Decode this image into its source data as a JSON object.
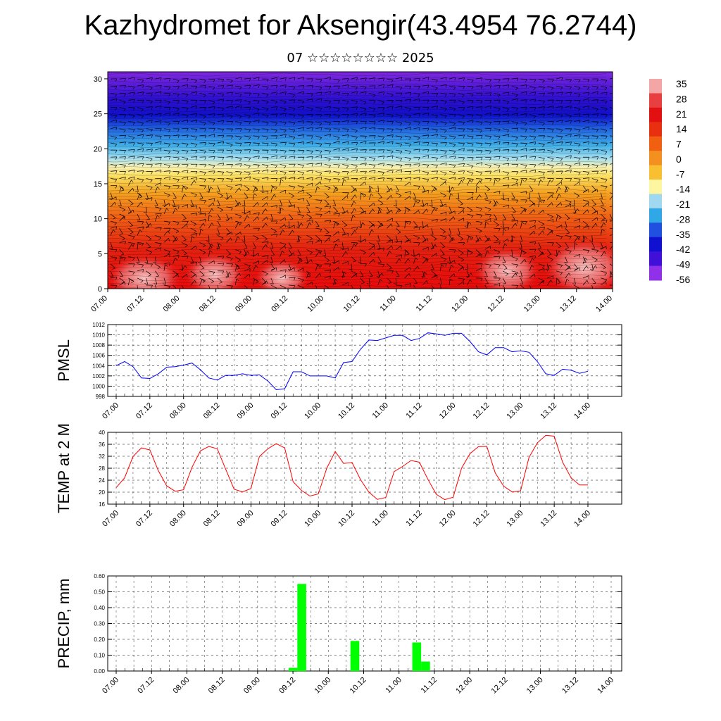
{
  "title": "Kazhydromet for Aksengir(43.4954 76.2744)",
  "subtitle": "07 ☆☆☆☆☆☆☆☆ 2025",
  "colors": {
    "pmsl": "#0000ff",
    "temp": "#ff0000",
    "precip": "#00ff00"
  },
  "chart_data": [
    {
      "type": "heatmap",
      "title": "",
      "xlabel": "",
      "ylabel": "",
      "x_ticks": [
        "07.00",
        "07.12",
        "08.00",
        "08.12",
        "09.00",
        "09.12",
        "10.00",
        "10.12",
        "11.00",
        "11.12",
        "12.00",
        "12.12",
        "13.00",
        "13.12",
        "14.00"
      ],
      "y_ticks": [
        0,
        5,
        10,
        15,
        20,
        25,
        30
      ],
      "ylim": [
        0,
        31
      ],
      "colorbar_labels": [
        "35",
        "28",
        "21",
        "14",
        "7",
        "0",
        "-7",
        "-14",
        "-21",
        "-28",
        "-35",
        "-42",
        "-49",
        "-56"
      ],
      "colorbar_colors": [
        "#f4a6a6",
        "#e84040",
        "#e21010",
        "#e83010",
        "#f06010",
        "#f49020",
        "#f8c030",
        "#fdf5a0",
        "#a0d8f0",
        "#30a8e8",
        "#2050e0",
        "#1010d0",
        "#4010d8",
        "#9030e8"
      ],
      "note_values": "wind barbs overlaid"
    },
    {
      "type": "line",
      "ylabel": "PMSL",
      "x_ticks": [
        "07.00",
        "07.12",
        "08.00",
        "08.12",
        "09.00",
        "09.12",
        "10.00",
        "10.12",
        "11.00",
        "11.12",
        "12.00",
        "12.12",
        "13.00",
        "13.12",
        "14.00"
      ],
      "ylim": [
        998,
        1012
      ],
      "y_ticks": [
        998,
        1000,
        1002,
        1004,
        1006,
        1008,
        1010,
        1012
      ],
      "values": [
        1004.0,
        1004.8,
        1003.8,
        1001.6,
        1001.5,
        1002.4,
        1003.7,
        1003.8,
        1004.1,
        1004.5,
        1003.2,
        1001.6,
        1001.2,
        1002.1,
        1002.1,
        1002.4,
        1002.1,
        1002.2,
        1001.0,
        999.3,
        999.5,
        1002.8,
        1002.8,
        1002.0,
        1002.0,
        1002.0,
        1001.6,
        1004.6,
        1004.8,
        1007.2,
        1009.0,
        1008.9,
        1009.4,
        1009.9,
        1009.9,
        1008.9,
        1009.3,
        1010.4,
        1010.2,
        1009.9,
        1010.3,
        1010.3,
        1008.7,
        1006.7,
        1006.1,
        1007.5,
        1007.5,
        1006.7,
        1006.9,
        1006.6,
        1004.8,
        1002.4,
        1002.1,
        1003.3,
        1003.1,
        1002.5,
        1002.9
      ]
    },
    {
      "type": "line",
      "ylabel": "TEMP at 2 M",
      "x_ticks": [
        "07.00",
        "07.12",
        "08.00",
        "08.12",
        "09.00",
        "09.12",
        "10.00",
        "10.12",
        "11.00",
        "11.12",
        "12.00",
        "12.12",
        "13.00",
        "13.12",
        "14.00"
      ],
      "ylim": [
        16,
        40
      ],
      "y_ticks": [
        16,
        20,
        24,
        28,
        32,
        36,
        40
      ],
      "values": [
        21.5,
        24.8,
        31.9,
        34.8,
        34.1,
        27.2,
        22.1,
        20.3,
        20.8,
        28.3,
        33.8,
        35.3,
        34.5,
        27.7,
        21.0,
        20.1,
        21.2,
        31.9,
        34.5,
        36.2,
        34.8,
        23.5,
        20.6,
        18.7,
        19.4,
        28.0,
        33.6,
        29.6,
        29.9,
        24.2,
        20.0,
        17.6,
        18.2,
        26.9,
        28.6,
        30.6,
        30.0,
        24.3,
        19.3,
        17.5,
        18.3,
        28.0,
        32.9,
        35.2,
        35.3,
        26.4,
        22.0,
        20.1,
        20.4,
        31.6,
        36.5,
        39.0,
        38.7,
        30.0,
        24.8,
        22.4,
        22.4
      ]
    },
    {
      "type": "bar",
      "ylabel": "PRECIP, mm",
      "x_ticks": [
        "07.00",
        "07.12",
        "08.00",
        "08.12",
        "09.00",
        "09.12",
        "10.00",
        "10.12",
        "11.00",
        "11.12",
        "12.00",
        "12.12",
        "13.00",
        "13.12",
        "14.00"
      ],
      "ylim": [
        0,
        0.6
      ],
      "y_ticks": [
        "0.00",
        "0.10",
        "0.20",
        "0.30",
        "0.40",
        "0.50",
        "0.60"
      ],
      "bars": [
        {
          "x": 20.0,
          "value": 0.02
        },
        {
          "x": 21.0,
          "value": 0.55
        },
        {
          "x": 27.0,
          "value": 0.19
        },
        {
          "x": 34.0,
          "value": 0.18
        },
        {
          "x": 35.0,
          "value": 0.06
        }
      ]
    }
  ]
}
